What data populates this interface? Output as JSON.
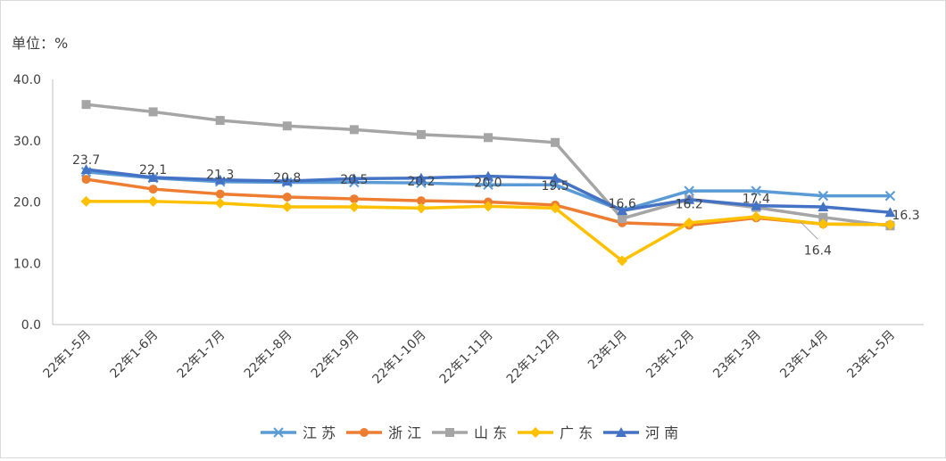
{
  "chart_data": {
    "type": "line",
    "unit_label": "单位：%",
    "ylim": [
      0,
      40
    ],
    "yticks": [
      "0.0",
      "10.0",
      "20.0",
      "30.0",
      "40.0"
    ],
    "grid": false,
    "legend_position": "bottom",
    "categories": [
      "22年1-5月",
      "22年1-6月",
      "22年1-7月",
      "22年1-8月",
      "22年1-9月",
      "22年1-10月",
      "22年1-11月",
      "22年1-12月",
      "23年1月",
      "23年1-2月",
      "23年1-3月",
      "23年1-4月",
      "23年1-5月"
    ],
    "series": [
      {
        "name": "江 苏",
        "color": "#5b9bd5",
        "marker": "x",
        "values": [
          24.9,
          23.9,
          23.3,
          23.2,
          23.2,
          23.1,
          22.8,
          22.8,
          18.6,
          21.8,
          21.8,
          21.0,
          21.0
        ]
      },
      {
        "name": "浙 江",
        "color": "#ed7d31",
        "marker": "circle",
        "values": [
          23.7,
          22.1,
          21.3,
          20.8,
          20.5,
          20.2,
          20.0,
          19.5,
          16.6,
          16.2,
          17.4,
          16.4,
          16.3
        ]
      },
      {
        "name": "山 东",
        "color": "#a5a5a5",
        "marker": "square",
        "values": [
          35.9,
          34.7,
          33.3,
          32.4,
          31.8,
          31.0,
          30.5,
          29.7,
          17.3,
          20.4,
          19.1,
          17.5,
          16.1
        ]
      },
      {
        "name": "广 东",
        "color": "#ffc000",
        "marker": "diamond",
        "values": [
          20.1,
          20.1,
          19.8,
          19.2,
          19.2,
          19.0,
          19.3,
          19.0,
          10.4,
          16.6,
          17.6,
          16.4,
          16.3
        ]
      },
      {
        "name": "河 南",
        "color": "#4472c4",
        "marker": "triangle",
        "values": [
          25.3,
          24.0,
          23.6,
          23.4,
          23.8,
          23.9,
          24.2,
          23.9,
          18.6,
          20.4,
          19.4,
          19.2,
          18.3
        ]
      }
    ],
    "data_labels": [
      "23.7",
      "22.1",
      "21.3",
      "20.8",
      "20.5",
      "20.2",
      "20.0",
      "19.5",
      "16.6",
      "16.2",
      "17.4",
      "16.4",
      "16.3"
    ]
  }
}
